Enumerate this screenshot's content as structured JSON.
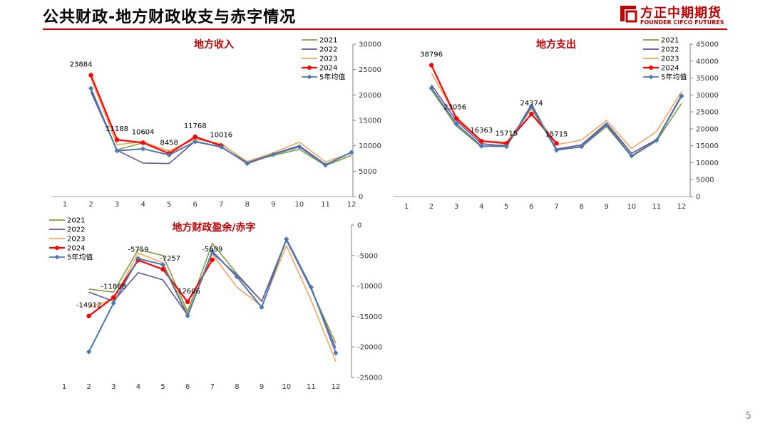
{
  "slide": {
    "title": "公共财政-地方财政收支与赤字情况",
    "logo_cn": "方正中期期货",
    "logo_en": "FOUNDER CIFCO FUTURES",
    "page_number": "5"
  },
  "colors": {
    "2021": "#7f9f3f",
    "2022": "#6a5196",
    "2023": "#f7a35c",
    "2024": "#ff0000",
    "5年均值": "#4a78b0",
    "title_red": "#c00000"
  },
  "chart_data": [
    {
      "type": "line",
      "title": "地方收入",
      "categories": [
        "1",
        "2",
        "3",
        "4",
        "5",
        "6",
        "7",
        "8",
        "9",
        "10",
        "11",
        "12"
      ],
      "ylim": [
        0,
        30000
      ],
      "yticks": [
        0,
        5000,
        10000,
        15000,
        20000,
        25000,
        30000
      ],
      "y_axis_side": "right",
      "legend": "top-right",
      "grid": false,
      "series": [
        {
          "name": "2021",
          "values": [
            null,
            21000,
            9200,
            10600,
            9000,
            11300,
            10400,
            6700,
            8100,
            9300,
            6100,
            8100
          ]
        },
        {
          "name": "2022",
          "values": [
            null,
            20600,
            9100,
            6600,
            6500,
            10900,
            9700,
            6700,
            8400,
            10000,
            6300,
            8700
          ]
        },
        {
          "name": "2023",
          "values": [
            null,
            23300,
            10200,
            10800,
            8900,
            11400,
            10300,
            6900,
            8600,
            10700,
            6800,
            8600
          ]
        },
        {
          "name": "2024",
          "values": [
            null,
            23884,
            11188,
            10604,
            8458,
            11768,
            10016,
            null,
            null,
            null,
            null,
            null
          ]
        },
        {
          "name": "5年均值",
          "values": [
            null,
            21300,
            9000,
            9400,
            8200,
            10800,
            9800,
            6500,
            8300,
            9800,
            6200,
            8700
          ]
        }
      ],
      "data_labels": [
        {
          "series": "2024",
          "index": 1,
          "text": "23884"
        },
        {
          "series": "2024",
          "index": 2,
          "text": "11188"
        },
        {
          "series": "2024",
          "index": 3,
          "text": "10604"
        },
        {
          "series": "2024",
          "index": 4,
          "text": "8458"
        },
        {
          "series": "2024",
          "index": 5,
          "text": "11768"
        },
        {
          "series": "2024",
          "index": 6,
          "text": "10016"
        }
      ]
    },
    {
      "type": "line",
      "title": "地方支出",
      "categories": [
        "1",
        "2",
        "3",
        "4",
        "5",
        "6",
        "7",
        "8",
        "9",
        "10",
        "11",
        "12"
      ],
      "ylim": [
        0,
        45000
      ],
      "yticks": [
        0,
        5000,
        10000,
        15000,
        20000,
        25000,
        30000,
        35000,
        40000,
        45000
      ],
      "y_axis_side": "right",
      "legend": "top-right",
      "grid": false,
      "series": [
        {
          "name": "2021",
          "values": [
            null,
            31500,
            20800,
            14700,
            15300,
            26000,
            13800,
            14600,
            20700,
            11800,
            16400,
            27500
          ]
        },
        {
          "name": "2022",
          "values": [
            null,
            33000,
            22400,
            15600,
            14900,
            27200,
            14000,
            15300,
            21700,
            12800,
            16800,
            30000
          ]
        },
        {
          "name": "2023",
          "values": [
            null,
            36500,
            23500,
            16500,
            16000,
            26100,
            15300,
            16700,
            22500,
            14200,
            19200,
            31000
          ]
        },
        {
          "name": "2024",
          "values": [
            null,
            38796,
            23056,
            16363,
            15715,
            24374,
            15715,
            null,
            null,
            null,
            null,
            null
          ]
        },
        {
          "name": "5年均值",
          "values": [
            null,
            32000,
            21400,
            14900,
            14800,
            26600,
            13700,
            14800,
            21200,
            12000,
            16600,
            29700
          ]
        }
      ],
      "data_labels": [
        {
          "series": "2024",
          "index": 1,
          "text": "38796"
        },
        {
          "series": "2024",
          "index": 2,
          "text": "23056"
        },
        {
          "series": "2024",
          "index": 3,
          "text": "16363"
        },
        {
          "series": "2024",
          "index": 4,
          "text": "15715"
        },
        {
          "series": "2024",
          "index": 5,
          "text": "24374"
        },
        {
          "series": "2024",
          "index": 6,
          "text": "15715"
        }
      ]
    },
    {
      "type": "line",
      "title": "地方财政盈余/赤字",
      "categories": [
        "1",
        "2",
        "3",
        "4",
        "5",
        "6",
        "7",
        "8",
        "9",
        "10",
        "11",
        "12"
      ],
      "ylim": [
        -25000,
        0
      ],
      "yticks": [
        0,
        -5000,
        -10000,
        -15000,
        -20000,
        -25000
      ],
      "y_axis_side": "right",
      "legend": "top-left",
      "grid": false,
      "series": [
        {
          "name": "2021",
          "values": [
            null,
            -10500,
            -11000,
            -4000,
            -5000,
            -14200,
            -3000,
            -8000,
            -12500,
            -2300,
            -10500,
            -19400
          ]
        },
        {
          "name": "2022",
          "values": [
            null,
            -11000,
            -12500,
            -7800,
            -9000,
            -14800,
            -4600,
            -8200,
            -12500,
            -2500,
            -10500,
            -20200
          ]
        },
        {
          "name": "2023",
          "values": [
            null,
            -13500,
            -12200,
            -4600,
            -6200,
            -14600,
            -4800,
            -10200,
            -13300,
            -3400,
            -12300,
            -22400
          ]
        },
        {
          "name": "2024",
          "values": [
            null,
            -14912,
            -11868,
            -5759,
            -7257,
            -12606,
            -5699,
            null,
            null,
            null,
            null,
            null
          ]
        },
        {
          "name": "5年均值",
          "values": [
            null,
            -20800,
            -12800,
            -5500,
            -6500,
            -14900,
            -4300,
            -8500,
            -13500,
            -2300,
            -10200,
            -21000
          ]
        }
      ],
      "data_labels": [
        {
          "series": "2024",
          "index": 1,
          "text": "-14912"
        },
        {
          "series": "2024",
          "index": 2,
          "text": "-11868"
        },
        {
          "series": "2024",
          "index": 3,
          "text": "-5759"
        },
        {
          "series": "2024",
          "index": 4,
          "text": "-7257"
        },
        {
          "series": "2024",
          "index": 5,
          "text": "-12606"
        },
        {
          "series": "2024",
          "index": 6,
          "text": "-5699"
        }
      ]
    }
  ]
}
